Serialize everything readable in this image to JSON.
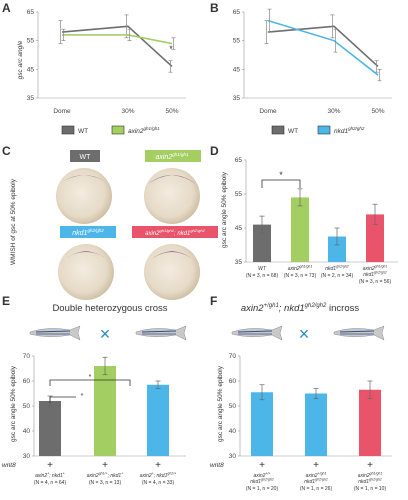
{
  "panels": {
    "A": "A",
    "B": "B",
    "C": "C",
    "D": "D",
    "E": "E",
    "F": "F"
  },
  "colors": {
    "wt": "#6d6d6d",
    "axin2": "#a3cf62",
    "nkd1": "#4db6e8",
    "double": "#e9546b",
    "fish_stripe": "#2e4f8a",
    "cross": "#2a8cc0"
  },
  "panel_A": {
    "ylabel": "gsc arc angle",
    "yticks": [
      "65",
      "55",
      "45",
      "35"
    ],
    "xticks": [
      "Dome",
      "30%",
      "50%"
    ],
    "legend": [
      {
        "key": "WT",
        "label": "WT"
      },
      {
        "key": "axin2",
        "label": "axin2",
        "sup": "gh1/gh1"
      }
    ],
    "star": "*"
  },
  "panel_B": {
    "yticks": [
      "65",
      "55",
      "45",
      "35"
    ],
    "xticks": [
      "Dome",
      "30%",
      "50%"
    ],
    "legend": [
      {
        "key": "WT",
        "label": "WT"
      },
      {
        "key": "nkd1",
        "label": "nkd1",
        "sup": "gh2/gh2"
      }
    ]
  },
  "panel_C": {
    "ylabel": "WMISH of gsc at 50% epiboly",
    "labels": [
      {
        "text": "WT",
        "sup": ""
      },
      {
        "text": "axin2",
        "sup": "gh1/gh1"
      },
      {
        "text": "nkd1",
        "sup": "gh2/gh2"
      },
      {
        "text": "axin2",
        "sup": "gh1/gh1",
        "text2": "; nkd1",
        "sup2": "gh2/gh2"
      }
    ]
  },
  "panel_D": {
    "ylabel": "gsc arc angle 50% epiboly",
    "yticks": [
      "65",
      "55",
      "45",
      "35"
    ],
    "star": "*",
    "groups": [
      {
        "label": "WT",
        "label2": "",
        "n": "(N = 3, n = 68)"
      },
      {
        "label": "axin2",
        "sup": "gh1/gh1",
        "label2": "",
        "n": "(N = 3, n = 73)"
      },
      {
        "label": "nkd1",
        "sup": "gh2/gh2",
        "label2": "",
        "n": "(N = 2, n = 34)"
      },
      {
        "label": "axin2",
        "sup": "gh1/gh1",
        "label2": "nkd1",
        "sup2": "gh2/gh2",
        "n": "(N = 3, n = 56)"
      }
    ]
  },
  "panel_E": {
    "title": "Double heterozygous cross",
    "ylabel": "gsc arc angle 50% epiboly",
    "yticks": [
      "70",
      "60",
      "50",
      "40",
      "30"
    ],
    "row_label": "wnt8",
    "plus": "+",
    "cross": "×",
    "stars": [
      "*",
      "*"
    ],
    "groups": [
      {
        "l1": "axin2",
        "s1": "+",
        "l2": "; nkd1",
        "s2": "+",
        "n": "(N = 4, n = 64)"
      },
      {
        "l1": "axin2",
        "s1": "gh1/+",
        "l2": "; nkd1",
        "s2": "+",
        "n": "(N = 3, n = 13)"
      },
      {
        "l1": "axin2",
        "s1": "+",
        "l2": "; nkd1",
        "s2": "gh2/+",
        "n": "(N = 4, n = 33)"
      }
    ]
  },
  "panel_F": {
    "title_a": "axin2",
    "title_a_sup": "+/gh1",
    "title_b": "; nkd1",
    "title_b_sup": "gh2/gh2",
    "title_c": " incross",
    "ylabel": "gsc arc angle 50% epiboly",
    "yticks": [
      "70",
      "60",
      "50",
      "40",
      "30"
    ],
    "row_label": "wnt8",
    "plus": "+",
    "cross": "×",
    "groups": [
      {
        "l1": "axin2",
        "s1": "+/+",
        "l2": "nkd1",
        "s2": "gh2/gh2",
        "n": "(N = 1, n = 20)"
      },
      {
        "l1": "axin2",
        "s1": "+/gh1",
        "l2": "nkd1",
        "s2": "gh2/gh2",
        "n": "(N = 1, n = 26)"
      },
      {
        "l1": "axin2",
        "s1": "gh1/gh1",
        "l2": "nkd1",
        "s2": "gh2/gh2",
        "n": "(N = 1, n = 10)"
      }
    ]
  },
  "chart_data": [
    {
      "type": "line",
      "title": "",
      "ylabel": "gsc arc angle",
      "categories": [
        "Dome",
        "30%",
        "50%"
      ],
      "ylim": [
        35,
        65
      ],
      "series": [
        {
          "name": "WT",
          "values": [
            58,
            60,
            46
          ],
          "err": [
            4,
            4,
            2
          ]
        },
        {
          "name": "axin2 gh1/gh1",
          "values": [
            57,
            57,
            54
          ],
          "err": [
            2,
            2,
            2
          ]
        }
      ]
    },
    {
      "type": "line",
      "title": "",
      "ylabel": "",
      "categories": [
        "Dome",
        "30%",
        "50%"
      ],
      "ylim": [
        35,
        65
      ],
      "series": [
        {
          "name": "WT",
          "values": [
            58,
            60,
            46
          ],
          "err": [
            4,
            4,
            2
          ]
        },
        {
          "name": "nkd1 gh2/gh2",
          "values": [
            62,
            55,
            43
          ],
          "err": [
            4,
            4,
            2
          ]
        }
      ]
    },
    {
      "type": "bar",
      "ylabel": "gsc arc angle 50% epiboly",
      "ylim": [
        35,
        65
      ],
      "categories": [
        "WT",
        "axin2 gh1/gh1",
        "nkd1 gh2/gh2",
        "axin2 gh1/gh1; nkd1 gh2/gh2"
      ],
      "values": [
        46,
        54,
        42.5,
        49
      ],
      "err": [
        2.5,
        2.5,
        2.5,
        3
      ]
    },
    {
      "type": "bar",
      "ylabel": "gsc arc angle 50% epiboly",
      "ylim": [
        30,
        70
      ],
      "categories": [
        "axin2 +; nkd1 +",
        "axin2 gh1/+; nkd1 +",
        "axin2 +; nkd1 gh2/+"
      ],
      "values": [
        52,
        66,
        58.5
      ],
      "err": [
        2,
        3.5,
        1.5
      ]
    },
    {
      "type": "bar",
      "ylabel": "gsc arc angle 50% epiboly",
      "ylim": [
        30,
        70
      ],
      "categories": [
        "axin2 +/+; nkd1 gh2/gh2",
        "axin2 +/gh1; nkd1 gh2/gh2",
        "axin2 gh1/gh1; nkd1 gh2/gh2"
      ],
      "values": [
        55.5,
        55,
        56.5
      ],
      "err": [
        3,
        2,
        3.5
      ]
    }
  ]
}
